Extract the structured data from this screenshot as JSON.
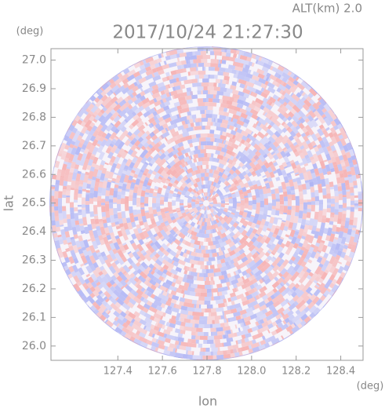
{
  "chart_data": {
    "type": "ppi",
    "title": "2017/10/24 21:27:30",
    "subtitle": "ALT(km) 2.0",
    "x_label": "lon",
    "x_unit": "(deg)",
    "y_label": "lat",
    "y_unit": "(deg)",
    "xlim": [
      127.1,
      128.5
    ],
    "ylim": [
      25.95,
      27.04
    ],
    "xticks": [
      127.4,
      127.6,
      127.8,
      {
        "value": 128,
        "label": "128.0"
      },
      128.2,
      128.4
    ],
    "yticks": [
      {
        "value": 26,
        "label": "26.0"
      },
      26.1,
      26.2,
      26.3,
      26.4,
      26.5,
      26.6,
      26.7,
      26.8,
      26.9,
      {
        "value": 27,
        "label": "27.0"
      }
    ],
    "color": "#888888"
  }
}
